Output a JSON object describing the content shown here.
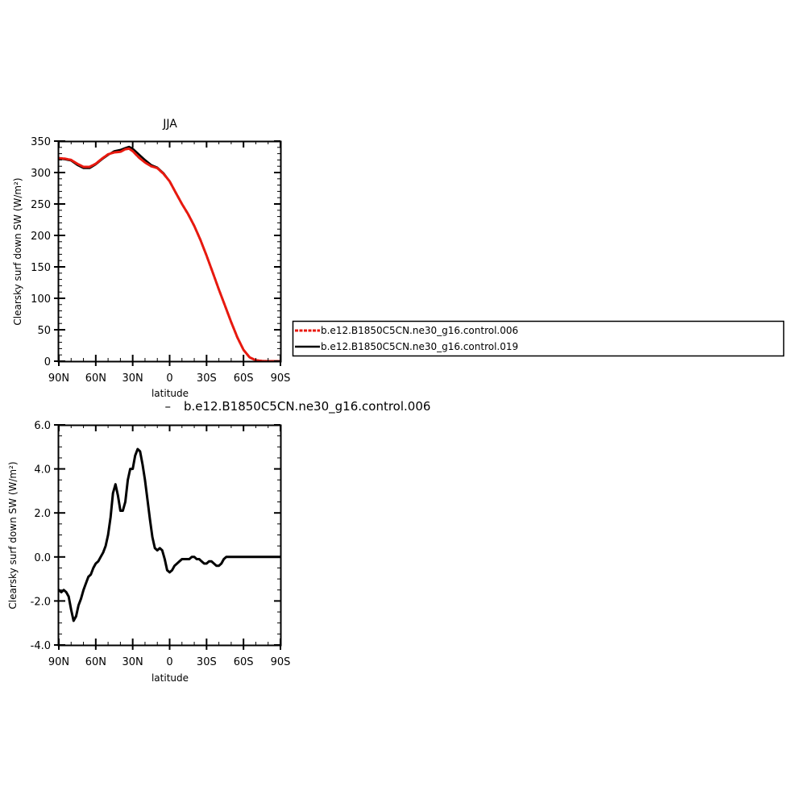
{
  "chart_data": [
    {
      "type": "line",
      "title": "JJA",
      "xlabel": "latitude",
      "ylabel": "Clearsky surf down SW (W/m²)",
      "ylim": [
        0,
        350
      ],
      "xlim": [
        -90,
        90
      ],
      "y_ticks": [
        0,
        50,
        100,
        150,
        200,
        250,
        300,
        350
      ],
      "y_tick_labels": [
        "0",
        "50",
        "100",
        "150",
        "200",
        "250",
        "300",
        "350"
      ],
      "x_ticks": [
        -90,
        -60,
        -30,
        0,
        30,
        60,
        90
      ],
      "x_tick_labels": [
        "90N",
        "60N",
        "30N",
        "0",
        "30S",
        "60S",
        "90S"
      ],
      "legend": {
        "placement": "right",
        "entries": [
          {
            "label": "b.e12.B1850C5CN.ne30_g16.control.006",
            "color": "#e8190f",
            "dashed": true
          },
          {
            "label": "b.e12.B1850C5CN.ne30_g16.control.019",
            "color": "#000000",
            "dashed": false
          }
        ]
      },
      "series": [
        {
          "name": "b.e12.B1850C5CN.ne30_g16.control.006",
          "color": "#e8190f",
          "x": [
            -90,
            -85,
            -80,
            -75,
            -70,
            -65,
            -60,
            -55,
            -50,
            -45,
            -40,
            -36,
            -33,
            -30,
            -25,
            -20,
            -15,
            -10,
            -5,
            0,
            5,
            10,
            15,
            20,
            25,
            30,
            35,
            40,
            45,
            50,
            55,
            60,
            65,
            70,
            75,
            80,
            85,
            90
          ],
          "y": [
            323,
            322,
            320,
            314,
            309,
            309,
            314,
            322,
            329,
            332,
            333,
            337,
            338,
            334,
            324,
            316,
            310,
            307,
            298,
            286,
            268,
            250,
            234,
            215,
            193,
            168,
            141,
            114,
            88,
            62,
            38,
            18,
            6,
            1.5,
            0.2,
            0,
            0,
            0
          ]
        },
        {
          "name": "b.e12.B1850C5CN.ne30_g16.control.019",
          "color": "#000000",
          "x": [
            -90,
            -85,
            -80,
            -75,
            -70,
            -65,
            -60,
            -55,
            -50,
            -45,
            -40,
            -36,
            -33,
            -30,
            -25,
            -20,
            -15,
            -10,
            -5,
            0,
            5,
            10,
            15,
            20,
            25,
            30,
            35,
            40,
            45,
            50,
            55,
            60,
            65,
            70,
            75,
            80,
            85,
            90
          ],
          "y": [
            322,
            321,
            319,
            312,
            307,
            307,
            313,
            321,
            328,
            334,
            336,
            339,
            341,
            338,
            329,
            320,
            312,
            308,
            299,
            286,
            268,
            250,
            234,
            215,
            193,
            168,
            141,
            114,
            88,
            62,
            38,
            18,
            6,
            1.5,
            0.2,
            0,
            0,
            0
          ]
        }
      ]
    },
    {
      "type": "line",
      "title": "b.e12.B1850C5CN.ne30_g16.control.006",
      "title_marker": "–",
      "xlabel": "latitude",
      "ylabel": "Clearsky surf down SW (W/m²)",
      "ylim": [
        -4,
        6
      ],
      "xlim": [
        -90,
        90
      ],
      "y_ticks": [
        -4,
        -2,
        0,
        2,
        4,
        6
      ],
      "y_tick_labels": [
        "-4.0",
        "-2.0",
        "0.0",
        "2.0",
        "4.0",
        "6.0"
      ],
      "x_ticks": [
        -90,
        -60,
        -30,
        0,
        30,
        60,
        90
      ],
      "x_tick_labels": [
        "90N",
        "60N",
        "30N",
        "0",
        "30S",
        "60S",
        "90S"
      ],
      "series": [
        {
          "color": "#000000",
          "x": [
            -90,
            -88,
            -86,
            -84,
            -82,
            -80,
            -78,
            -76,
            -74,
            -72,
            -70,
            -68,
            -66,
            -64,
            -62,
            -60,
            -58,
            -56,
            -54,
            -52,
            -50,
            -48,
            -46,
            -44,
            -42,
            -40,
            -38,
            -36,
            -34,
            -32,
            -30,
            -28,
            -26,
            -24,
            -22,
            -20,
            -18,
            -16,
            -14,
            -12,
            -10,
            -8,
            -6,
            -4,
            -2,
            0,
            2,
            4,
            6,
            8,
            10,
            12,
            14,
            16,
            18,
            20,
            22,
            24,
            26,
            28,
            30,
            32,
            34,
            36,
            38,
            40,
            42,
            44,
            46,
            48,
            50,
            52,
            54,
            56,
            58,
            60,
            62,
            64,
            66,
            68,
            70,
            72,
            74,
            76,
            78,
            80,
            82,
            84,
            86,
            88,
            90
          ],
          "y": [
            -1.5,
            -1.6,
            -1.5,
            -1.6,
            -1.8,
            -2.4,
            -2.9,
            -2.7,
            -2.2,
            -1.9,
            -1.5,
            -1.2,
            -0.9,
            -0.8,
            -0.5,
            -0.3,
            -0.2,
            0.0,
            0.2,
            0.5,
            1.0,
            1.8,
            2.9,
            3.3,
            2.8,
            2.1,
            2.1,
            2.5,
            3.5,
            4.0,
            4.0,
            4.6,
            4.9,
            4.8,
            4.2,
            3.5,
            2.6,
            1.7,
            0.9,
            0.4,
            0.3,
            0.4,
            0.3,
            -0.1,
            -0.6,
            -0.7,
            -0.6,
            -0.4,
            -0.3,
            -0.2,
            -0.1,
            -0.1,
            -0.1,
            -0.1,
            0.0,
            0.0,
            -0.1,
            -0.1,
            -0.2,
            -0.3,
            -0.3,
            -0.2,
            -0.2,
            -0.3,
            -0.4,
            -0.4,
            -0.3,
            -0.1,
            0.0,
            0.0,
            0.0,
            0.0,
            0.0,
            0.0,
            0.0,
            0.0,
            0.0,
            0.0,
            0.0,
            0.0,
            0.0,
            0.0,
            0.0,
            0.0,
            0.0,
            0.0,
            0.0,
            0.0,
            0.0,
            0.0,
            0.0
          ]
        }
      ]
    }
  ]
}
